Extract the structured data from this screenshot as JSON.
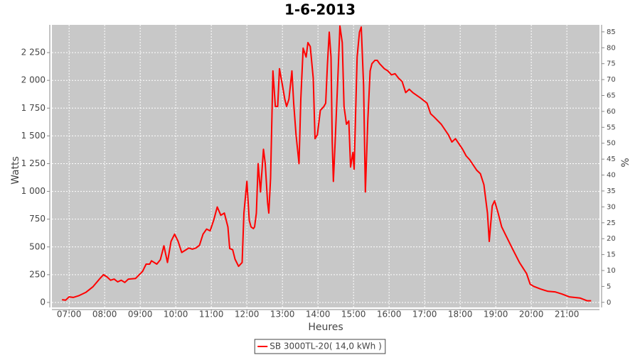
{
  "chart_data": {
    "type": "line",
    "title": "1-6-2013",
    "x_label": "Heures",
    "y_label": "Watts",
    "y2_label": "%",
    "x": [
      "06:48",
      "06:54",
      "07:00",
      "07:07",
      "07:16",
      "07:28",
      "07:40",
      "07:52",
      "07:58",
      "08:04",
      "08:10",
      "08:16",
      "08:22",
      "08:28",
      "08:34",
      "08:40",
      "08:52",
      "09:04",
      "09:10",
      "09:16",
      "09:19",
      "09:28",
      "09:34",
      "09:40",
      "09:46",
      "09:52",
      "09:58",
      "10:04",
      "10:10",
      "10:16",
      "10:22",
      "10:28",
      "10:34",
      "10:40",
      "10:46",
      "10:52",
      "10:58",
      "11:04",
      "11:10",
      "11:16",
      "11:22",
      "11:28",
      "11:31",
      "11:36",
      "11:40",
      "11:46",
      "11:52",
      "11:55",
      "12:00",
      "12:04",
      "12:07",
      "12:11",
      "12:13",
      "12:16",
      "12:19",
      "12:23",
      "12:28",
      "12:31",
      "12:35",
      "12:37",
      "12:40",
      "12:44",
      "12:48",
      "12:52",
      "12:55",
      "13:00",
      "13:04",
      "13:07",
      "13:11",
      "13:16",
      "13:19",
      "13:23",
      "13:28",
      "13:31",
      "13:35",
      "13:40",
      "13:43",
      "13:47",
      "13:52",
      "13:55",
      "13:59",
      "14:04",
      "14:10",
      "14:13",
      "14:16",
      "14:19",
      "14:22",
      "14:24",
      "14:26",
      "14:29",
      "14:34",
      "14:37",
      "14:41",
      "14:44",
      "14:48",
      "14:52",
      "14:55",
      "14:59",
      "15:01",
      "15:06",
      "15:10",
      "15:13",
      "15:17",
      "15:20",
      "15:24",
      "15:28",
      "15:31",
      "15:36",
      "15:40",
      "15:44",
      "15:52",
      "15:58",
      "16:04",
      "16:10",
      "16:16",
      "16:22",
      "16:28",
      "16:34",
      "16:40",
      "16:52",
      "17:04",
      "17:10",
      "17:16",
      "17:28",
      "17:40",
      "17:46",
      "17:52",
      "18:04",
      "18:10",
      "18:16",
      "18:28",
      "18:34",
      "18:40",
      "18:46",
      "18:49",
      "18:54",
      "18:58",
      "19:04",
      "19:10",
      "19:16",
      "19:28",
      "19:40",
      "19:52",
      "19:58",
      "20:04",
      "20:16",
      "20:28",
      "20:40",
      "20:52",
      "21:04",
      "21:22",
      "21:34",
      "21:41"
    ],
    "series": [
      {
        "name": "SB 3000TL-20( 14,0 kWh )",
        "color": "#ff0000",
        "values": [
          25,
          20,
          50,
          45,
          60,
          90,
          140,
          215,
          250,
          230,
          200,
          210,
          185,
          200,
          180,
          210,
          215,
          280,
          345,
          345,
          375,
          345,
          385,
          510,
          360,
          550,
          615,
          550,
          450,
          470,
          490,
          480,
          490,
          515,
          615,
          660,
          645,
          740,
          860,
          785,
          805,
          680,
          485,
          475,
          390,
          325,
          360,
          805,
          1090,
          740,
          680,
          665,
          680,
          805,
          1250,
          995,
          1380,
          1250,
          900,
          805,
          1120,
          2085,
          1765,
          1765,
          2105,
          1955,
          1830,
          1765,
          1830,
          2085,
          1795,
          1510,
          1250,
          1830,
          2290,
          2210,
          2340,
          2305,
          2020,
          1475,
          1510,
          1730,
          1765,
          1795,
          2150,
          2435,
          2210,
          1445,
          1090,
          1445,
          2085,
          2490,
          2340,
          1765,
          1605,
          1635,
          1220,
          1350,
          1200,
          2210,
          2435,
          2480,
          1955,
          995,
          1635,
          2085,
          2150,
          2180,
          2180,
          2150,
          2105,
          2085,
          2050,
          2060,
          2020,
          1990,
          1890,
          1920,
          1890,
          1845,
          1795,
          1700,
          1670,
          1605,
          1510,
          1445,
          1475,
          1380,
          1320,
          1285,
          1190,
          1160,
          1060,
          805,
          550,
          870,
          915,
          805,
          680,
          615,
          485,
          360,
          260,
          165,
          145,
          120,
          100,
          95,
          75,
          50,
          40,
          15,
          15
        ]
      }
    ],
    "xlim": [
      "06:31",
      "21:55"
    ],
    "xticks": [
      "07:00",
      "08:00",
      "09:00",
      "10:00",
      "11:00",
      "12:00",
      "13:00",
      "14:00",
      "15:00",
      "16:00",
      "17:00",
      "18:00",
      "19:00",
      "20:00",
      "21:00"
    ],
    "ylim": [
      -45,
      2500
    ],
    "yticks": [
      0,
      250,
      500,
      750,
      {
        "value": 1000,
        "label": "1 000"
      },
      {
        "value": 1250,
        "label": "1 250"
      },
      {
        "value": 1500,
        "label": "1 500"
      },
      {
        "value": 1750,
        "label": "1 750"
      },
      {
        "value": 2000,
        "label": "2 000"
      },
      {
        "value": 2250,
        "label": "2 250"
      }
    ],
    "y2lim": [
      -1.6,
      87.2
    ],
    "y2ticks": [
      0,
      5,
      10,
      15,
      20,
      25,
      30,
      35,
      40,
      45,
      50,
      55,
      60,
      65,
      70,
      75,
      80,
      85
    ],
    "grid": true,
    "legend": "bottom"
  }
}
